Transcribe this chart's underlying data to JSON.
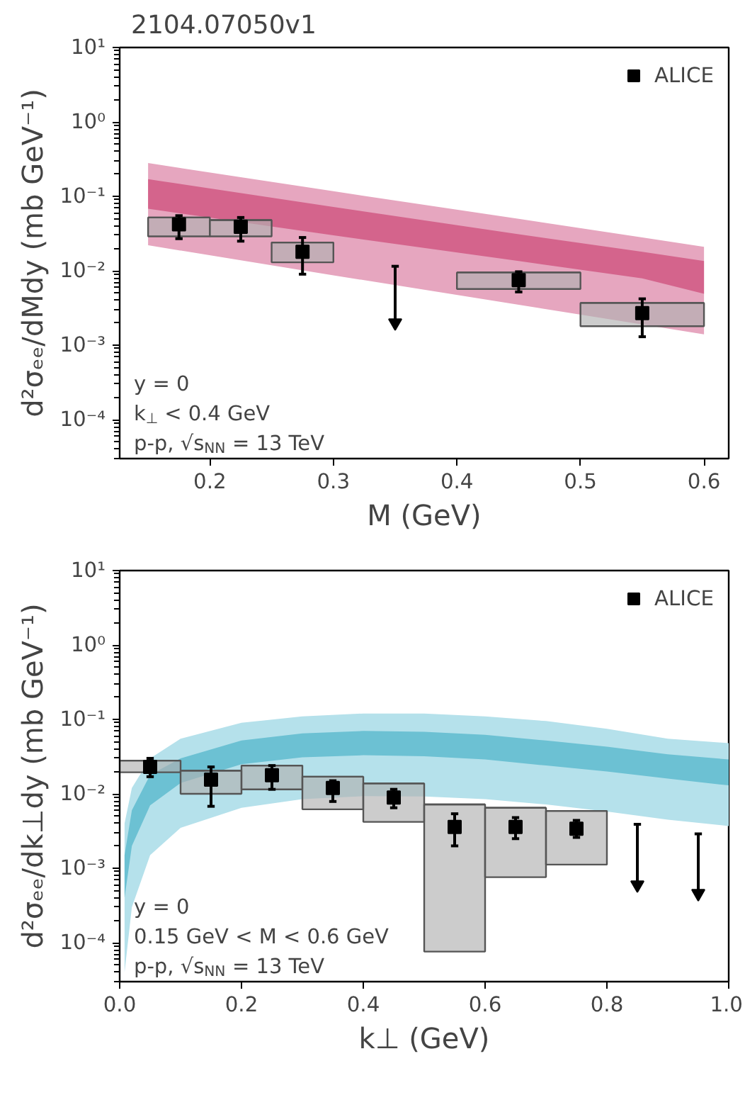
{
  "chart_data": [
    {
      "type": "scatter",
      "title": "2104.07050v1",
      "xlabel": "M (GeV)",
      "ylabel": "d²σₑₑ/dMdy (mb GeV⁻¹)",
      "log": "y",
      "legend": "top right",
      "xlim": [
        0.127,
        0.62
      ],
      "xticks": [
        0.2,
        0.3,
        0.4,
        0.5,
        0.6
      ],
      "ylim": [
        3e-05,
        10
      ],
      "yticks": [
        {
          "value": 0.0001,
          "label": "10⁻⁴"
        },
        {
          "value": 0.001,
          "label": "10⁻³"
        },
        {
          "value": 0.01,
          "label": "10⁻²"
        },
        {
          "value": 0.1,
          "label": "10⁻¹"
        },
        {
          "value": 1,
          "label": "10⁰"
        },
        {
          "value": 10,
          "label": "10¹"
        }
      ],
      "annotations": [
        "y = 0",
        "k$_{⊥}$ < 0.4 GeV",
        "p-p, √s$_{NN}$ = 13 TeV"
      ],
      "series": [
        {
          "type": "area",
          "color": "#e6a6bf",
          "x": [
            0.15,
            0.3,
            0.45,
            0.55,
            0.6
          ],
          "lower": [
            0.022,
            0.0087,
            0.0035,
            0.0019,
            0.0014
          ],
          "upper": [
            0.28,
            0.117,
            0.05,
            0.028,
            0.021
          ],
          "values": [
            null,
            null,
            null,
            null,
            null
          ]
        },
        {
          "type": "area",
          "color": "#d4648c",
          "x": [
            0.15,
            0.3,
            0.45,
            0.55,
            0.6
          ],
          "lower": [
            0.068,
            0.03,
            0.0135,
            0.0079,
            0.0049
          ],
          "upper": [
            0.17,
            0.072,
            0.031,
            0.018,
            0.0135
          ],
          "values": [
            null,
            null,
            null,
            null,
            null
          ]
        },
        {
          "type": "bar",
          "color": "#b0b0b0",
          "x": [
            0.175,
            0.225,
            0.275,
            0.45,
            0.55
          ],
          "xerrors": [
            0.025,
            0.025,
            0.025,
            0.05,
            0.05
          ],
          "base": [
            0.029,
            0.029,
            0.013,
            0.0057,
            0.0018
          ],
          "values": [
            0.023,
            0.019,
            0.011,
            0.0038,
            0.0019
          ]
        },
        {
          "name": "ALICE",
          "color": "#000000",
          "marker": "square",
          "x": [
            0.175,
            0.225,
            0.275,
            0.45,
            0.55
          ],
          "values": [
            0.042,
            0.039,
            0.018,
            0.0075,
            0.0027
          ],
          "errors": [
            [
              0.027,
              0.055
            ],
            [
              0.025,
              0.052
            ],
            [
              0.009,
              0.028
            ],
            [
              0.0052,
              0.0097
            ],
            [
              0.0013,
              0.0042
            ]
          ]
        },
        {
          "color": "#000000",
          "marker": "triangle",
          "x": [
            0.35
          ],
          "values": [
            0.002
          ],
          "errors": [
            [
              0.002,
              0.0115
            ]
          ]
        }
      ]
    },
    {
      "type": "scatter",
      "xlabel": "k⊥ (GeV)",
      "ylabel": "d²σₑₑ/dk⊥dy (mb GeV⁻¹)",
      "log": "y",
      "legend": "top right",
      "xlim": [
        0,
        1
      ],
      "xticks": [
        {
          "value": 0,
          "label": "0.0"
        },
        0.2,
        0.4,
        0.6,
        0.8,
        {
          "value": 1,
          "label": "1.0"
        }
      ],
      "ylim": [
        3e-05,
        10
      ],
      "yticks": [
        {
          "value": 0.0001,
          "label": "10⁻⁴"
        },
        {
          "value": 0.001,
          "label": "10⁻³"
        },
        {
          "value": 0.01,
          "label": "10⁻²"
        },
        {
          "value": 0.1,
          "label": "10⁻¹"
        },
        {
          "value": 1,
          "label": "10⁰"
        },
        {
          "value": 10,
          "label": "10¹"
        }
      ],
      "annotations": [
        "y = 0",
        "0.15 GeV < M < 0.6 GeV",
        "p-p, √s$_{NN}$ = 13 TeV"
      ],
      "series": [
        {
          "type": "area",
          "color": "#b5e1eb",
          "x": [
            0.008,
            0.02,
            0.05,
            0.1,
            0.2,
            0.3,
            0.4,
            0.5,
            0.6,
            0.7,
            0.8,
            0.9,
            1.0
          ],
          "lower": [
            4e-05,
            0.0003,
            0.0015,
            0.0035,
            0.0065,
            0.0085,
            0.0093,
            0.0092,
            0.0085,
            0.0072,
            0.0058,
            0.0045,
            0.0037
          ],
          "upper": [
            0.004,
            0.012,
            0.03,
            0.055,
            0.09,
            0.11,
            0.12,
            0.12,
            0.11,
            0.095,
            0.075,
            0.055,
            0.048
          ],
          "values": [
            null,
            null,
            null,
            null,
            null,
            null,
            null,
            null,
            null,
            null,
            null,
            null,
            null
          ]
        },
        {
          "type": "area",
          "color": "#6cc1d3",
          "x": [
            0.008,
            0.02,
            0.05,
            0.1,
            0.2,
            0.3,
            0.4,
            0.5,
            0.6,
            0.7,
            0.8,
            0.9,
            1.0
          ],
          "lower": [
            0.0004,
            0.002,
            0.007,
            0.014,
            0.025,
            0.031,
            0.033,
            0.032,
            0.029,
            0.024,
            0.02,
            0.016,
            0.013
          ],
          "upper": [
            0.0015,
            0.006,
            0.018,
            0.03,
            0.052,
            0.065,
            0.07,
            0.068,
            0.062,
            0.052,
            0.043,
            0.034,
            0.029
          ],
          "values": [
            null,
            null,
            null,
            null,
            null,
            null,
            null,
            null,
            null,
            null,
            null,
            null,
            null
          ]
        },
        {
          "type": "bar",
          "color": "#b0b0b0",
          "x": [
            0.05,
            0.15,
            0.25,
            0.35,
            0.45,
            0.55,
            0.65,
            0.75
          ],
          "xerrors": [
            0.05,
            0.05,
            0.05,
            0.05,
            0.05,
            0.05,
            0.05,
            0.05
          ],
          "base": [
            0.0195,
            0.01,
            0.0115,
            0.0062,
            0.0042,
            7.6e-05,
            0.00076,
            0.00112
          ],
          "values": [
            0.0085,
            0.0105,
            0.0125,
            0.0108,
            0.0096,
            0.007124,
            0.00574,
            0.00478
          ]
        },
        {
          "name": "ALICE",
          "color": "#000000",
          "marker": "square",
          "x": [
            0.05,
            0.15,
            0.25,
            0.35,
            0.45,
            0.55,
            0.65,
            0.75
          ],
          "values": [
            0.023,
            0.0155,
            0.0178,
            0.012,
            0.0089,
            0.0036,
            0.0036,
            0.0034
          ],
          "errors": [
            [
              0.017,
              0.03
            ],
            [
              0.0068,
              0.023
            ],
            [
              0.0115,
              0.024
            ],
            [
              0.0079,
              0.015
            ],
            [
              0.0065,
              0.0115
            ],
            [
              0.002,
              0.0054
            ],
            [
              0.0025,
              0.0048
            ],
            [
              0.0026,
              0.0044
            ]
          ]
        },
        {
          "color": "#000000",
          "marker": "triangle",
          "x": [
            0.85,
            0.95
          ],
          "values": [
            0.0006,
            0.00046
          ],
          "errors": [
            [
              0.0006,
              0.0039
            ],
            [
              0.00046,
              0.0029
            ]
          ]
        }
      ]
    }
  ]
}
